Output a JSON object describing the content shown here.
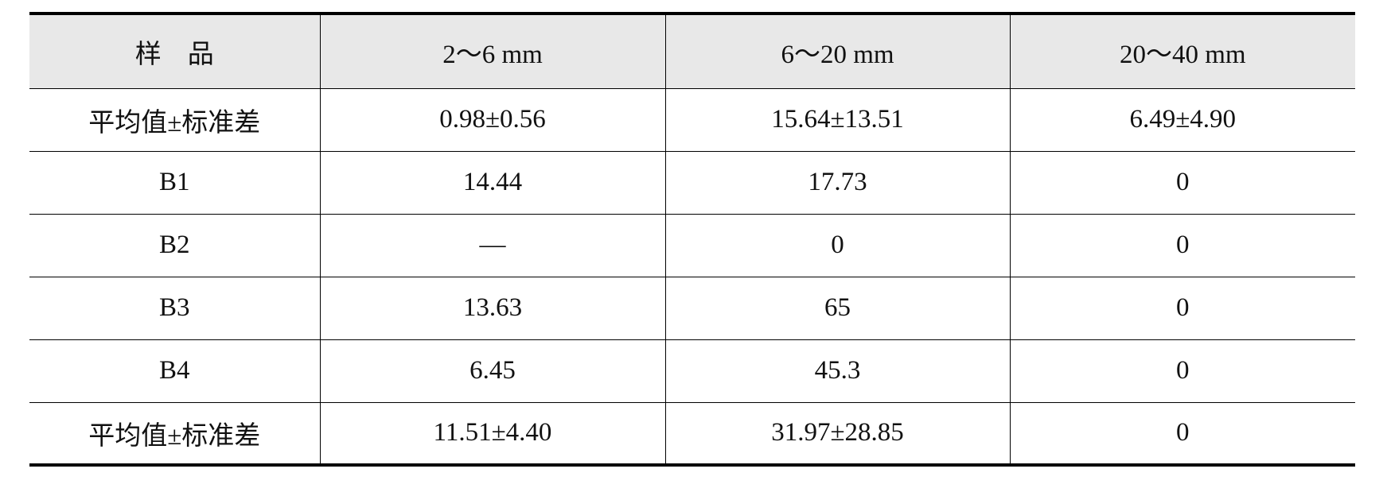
{
  "table": {
    "header": [
      "样　品",
      "2～6 mm",
      "6～20 mm",
      "20～40 mm"
    ],
    "rows": [
      [
        "平均值±标准差",
        "0.98±0.56",
        "15.64±13.51",
        "6.49±4.90"
      ],
      [
        "B1",
        "14.44",
        "17.73",
        "0"
      ],
      [
        "B2",
        "—",
        "0",
        "0"
      ],
      [
        "B3",
        "13.63",
        "65",
        "0"
      ],
      [
        "B4",
        "6.45",
        "45.3",
        "0"
      ],
      [
        "平均值±标准差",
        "11.51±4.40",
        "31.97±28.85",
        "0"
      ]
    ]
  }
}
